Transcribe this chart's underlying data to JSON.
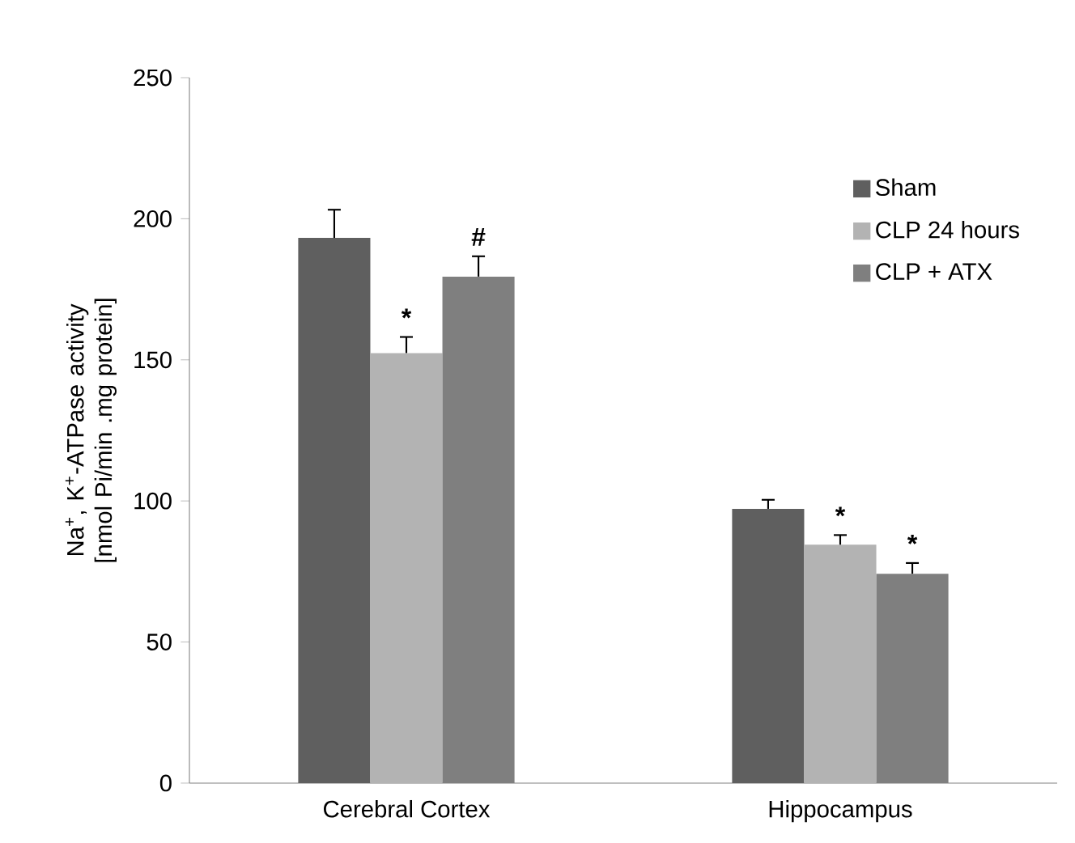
{
  "chart_data": {
    "type": "bar",
    "ylabel": "Na$^{+}$, K$^{+}$-ATPase activity [nmol Pi/min .mg protein]",
    "categories": [
      "Cerebral Cortex",
      "Hippocampus"
    ],
    "series": [
      {
        "name": "Sham",
        "color": "#5f5f5f",
        "values": [
          193.2,
          97.2
        ],
        "errors": [
          10,
          3.2
        ]
      },
      {
        "name": "CLP 24 hours",
        "color": "#b3b3b3",
        "values": [
          152.4,
          84.5
        ],
        "errors": [
          5.7,
          3.4
        ],
        "value_labels": [
          "*",
          "*"
        ]
      },
      {
        "name": "CLP + ATX",
        "color": "#7f7f7f",
        "values": [
          179.5,
          74.2
        ],
        "errors": [
          7.2,
          3.8
        ],
        "value_labels": [
          "#",
          "*"
        ]
      }
    ],
    "ylim": [
      0,
      250
    ],
    "yticks": [
      0,
      50,
      100,
      150,
      200,
      250
    ],
    "grid": false,
    "legend": "right"
  }
}
